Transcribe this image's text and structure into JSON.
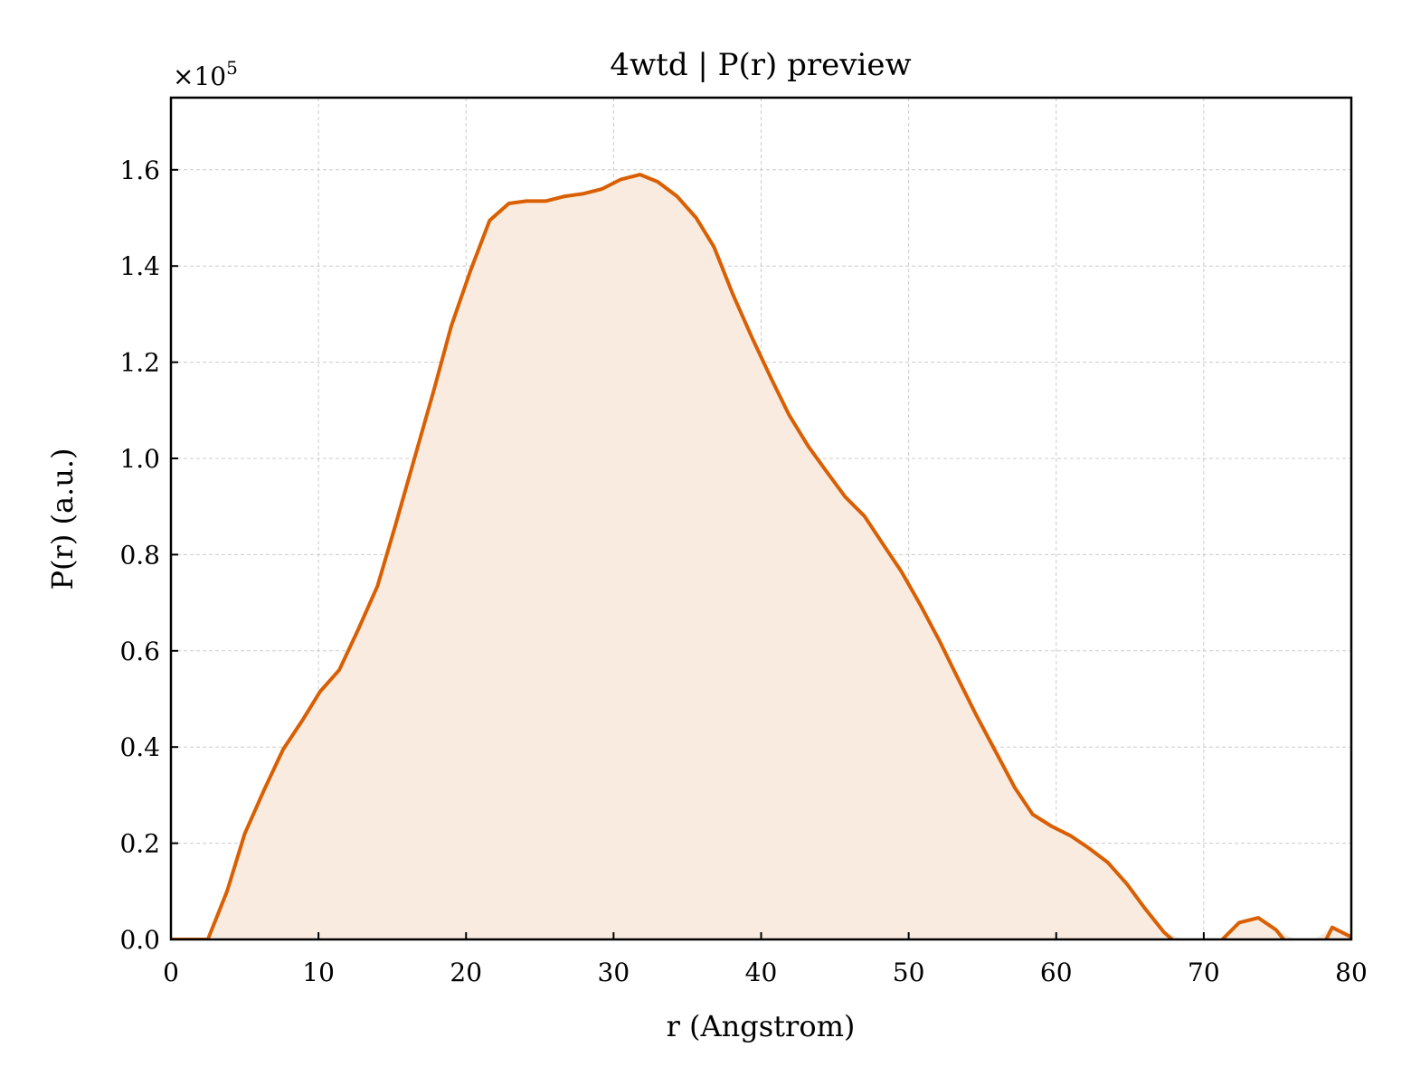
{
  "chart_data": {
    "type": "area",
    "title": "4wtd | P(r) preview",
    "xlabel": "r (Angstrom)",
    "ylabel": "P(r) (a.u.)",
    "y_multiplier": "×10",
    "y_multiplier_exp": "5",
    "xlim": [
      0,
      80
    ],
    "ylim": [
      0,
      1.75
    ],
    "x_ticks": [
      0,
      10,
      20,
      30,
      40,
      50,
      60,
      70,
      80
    ],
    "x_tick_labels": [
      "0",
      "10",
      "20",
      "30",
      "40",
      "50",
      "60",
      "70",
      "80"
    ],
    "y_ticks": [
      0,
      0.2,
      0.4,
      0.6,
      0.8,
      1.0,
      1.2,
      1.4,
      1.6
    ],
    "y_tick_labels": [
      "0.0",
      "0.2",
      "0.4",
      "0.6",
      "0.8",
      "1.0",
      "1.2",
      "1.4",
      "1.6"
    ],
    "grid": true,
    "line_color": "#d95f02",
    "fill_color": "#f9ebe0",
    "series": [
      {
        "x": [
          0,
          2.5,
          3.8,
          5.0,
          6.3,
          7.6,
          8.9,
          10.1,
          11.4,
          12.7,
          14.0,
          15.2,
          16.5,
          17.8,
          19.0,
          20.3,
          21.6,
          22.9,
          24.1,
          25.4,
          26.7,
          27.9,
          29.2,
          30.5,
          31.8,
          33.0,
          34.3,
          35.6,
          36.8,
          38.1,
          39.4,
          40.7,
          41.9,
          43.2,
          44.5,
          45.7,
          47.0,
          48.3,
          49.5,
          50.8,
          52.1,
          53.3,
          54.6,
          55.9,
          57.2,
          58.4,
          59.7,
          61.0,
          62.2,
          63.5,
          64.8,
          66.0,
          67.3,
          68.6,
          69.9,
          71.1,
          72.4,
          73.7,
          74.9,
          76.2,
          77.5,
          78.7,
          80.0
        ],
        "y": [
          0,
          0,
          0.1,
          0.22,
          0.31,
          0.395,
          0.455,
          0.515,
          0.56,
          0.645,
          0.735,
          0.86,
          1.0,
          1.14,
          1.275,
          1.39,
          1.495,
          1.53,
          1.535,
          1.535,
          1.545,
          1.55,
          1.56,
          1.58,
          1.59,
          1.575,
          1.545,
          1.5,
          1.44,
          1.34,
          1.25,
          1.165,
          1.09,
          1.025,
          0.97,
          0.92,
          0.88,
          0.82,
          0.765,
          0.695,
          0.62,
          0.545,
          0.465,
          0.39,
          0.315,
          0.26,
          0.235,
          0.215,
          0.19,
          0.16,
          0.115,
          0.065,
          0.015,
          -0.02,
          -0.04,
          -0.005,
          0.035,
          0.045,
          0.02,
          -0.03,
          -0.05,
          0.025,
          0.005
        ]
      }
    ]
  }
}
